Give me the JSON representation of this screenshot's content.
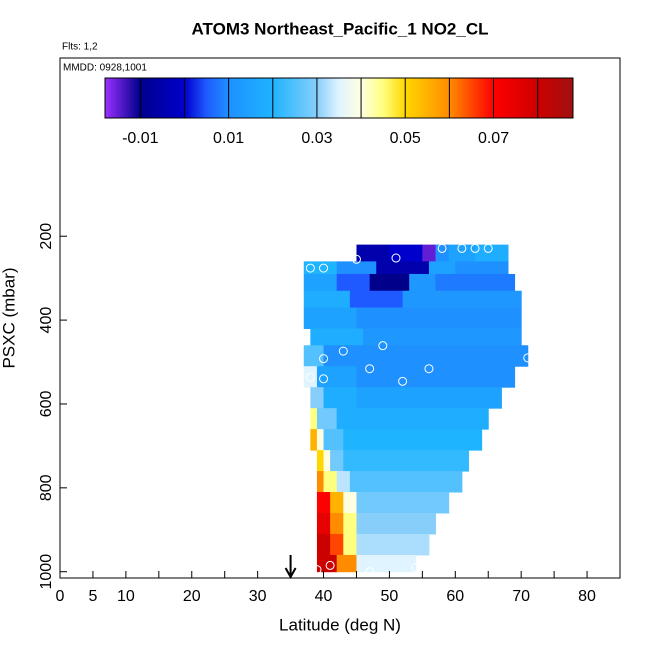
{
  "chart_data": {
    "type": "curtain",
    "title": "ATOM3 Northeast_Pacific_1 NO2_CL",
    "flights_note": "Flts: 1,2",
    "dates_note": "MMDD: 0928,1001",
    "xlabel": "Latitude (deg N)",
    "ylabel": "PSXC (mbar)",
    "xlim": [
      0,
      85
    ],
    "ylim": [
      1015,
      -225
    ],
    "xticks": [
      0,
      5,
      10,
      20,
      30,
      40,
      50,
      60,
      70,
      80
    ],
    "xminor": [
      15,
      25,
      35,
      45,
      55,
      65,
      75,
      85
    ],
    "yticks": [
      200,
      400,
      600,
      800,
      1000
    ],
    "colorbar_range": [
      -0.018,
      0.088
    ],
    "colorbar_ticks": [
      -0.01,
      0.01,
      0.03,
      0.05,
      0.07
    ],
    "colorbar_breaks": [
      -0.01,
      0,
      0.01,
      0.02,
      0.03,
      0.04,
      0.05,
      0.06,
      0.07,
      0.08
    ],
    "colorscale": [
      [
        -0.018,
        "#9b30ff"
      ],
      [
        -0.01,
        "#00008b"
      ],
      [
        0.0,
        "#0000cd"
      ],
      [
        0.005,
        "#1e5aff"
      ],
      [
        0.01,
        "#1e90ff"
      ],
      [
        0.02,
        "#1eb4ff"
      ],
      [
        0.03,
        "#87cefa"
      ],
      [
        0.035,
        "#e0f4ff"
      ],
      [
        0.04,
        "#ffffe0"
      ],
      [
        0.045,
        "#ffff80"
      ],
      [
        0.05,
        "#ffd700"
      ],
      [
        0.06,
        "#ff8c00"
      ],
      [
        0.07,
        "#ff0000"
      ],
      [
        0.08,
        "#cd0000"
      ],
      [
        0.088,
        "#a01010"
      ]
    ],
    "cells": [
      {
        "p": [
          220,
          260
        ],
        "edges": [
          45,
          50,
          55,
          57,
          59,
          63,
          68
        ],
        "values": [
          -0.005,
          0.0,
          -0.015,
          0.01,
          0.015,
          0.018
        ]
      },
      {
        "p": [
          260,
          290
        ],
        "edges": [
          37,
          42,
          48,
          56,
          60,
          68
        ],
        "values": [
          0.02,
          0.01,
          -0.005,
          0.015,
          0.01
        ]
      },
      {
        "p": [
          290,
          330
        ],
        "edges": [
          37,
          42,
          47,
          53,
          57,
          69
        ],
        "values": [
          0.015,
          0.005,
          -0.01,
          0.012,
          0.008
        ]
      },
      {
        "p": [
          330,
          370
        ],
        "edges": [
          37,
          44,
          52,
          70
        ],
        "values": [
          0.018,
          0.005,
          0.012
        ]
      },
      {
        "p": [
          370,
          420
        ],
        "edges": [
          37,
          45,
          70
        ],
        "values": [
          0.015,
          0.01
        ]
      },
      {
        "p": [
          420,
          460
        ],
        "edges": [
          38,
          46,
          70
        ],
        "values": [
          0.018,
          0.012
        ]
      },
      {
        "p": [
          460,
          510
        ],
        "edges": [
          37,
          40,
          71
        ],
        "values": [
          0.025,
          0.01
        ]
      },
      {
        "p": [
          510,
          560
        ],
        "edges": [
          37,
          39,
          45,
          69
        ],
        "values": [
          0.035,
          0.015,
          0.01
        ]
      },
      {
        "p": [
          560,
          610
        ],
        "edges": [
          38,
          40,
          45,
          67
        ],
        "values": [
          0.03,
          0.018,
          0.015
        ]
      },
      {
        "p": [
          610,
          660
        ],
        "edges": [
          38,
          39,
          42,
          65
        ],
        "values": [
          0.045,
          0.028,
          0.018
        ]
      },
      {
        "p": [
          660,
          710
        ],
        "edges": [
          38,
          39,
          40,
          43,
          64
        ],
        "values": [
          0.055,
          0.04,
          0.025,
          0.02
        ]
      },
      {
        "p": [
          710,
          760
        ],
        "edges": [
          39,
          40,
          41,
          43,
          62
        ],
        "values": [
          0.05,
          0.04,
          0.028,
          0.022
        ]
      },
      {
        "p": [
          760,
          810
        ],
        "edges": [
          39,
          40,
          42,
          44,
          61
        ],
        "values": [
          0.06,
          0.045,
          0.033,
          0.025
        ]
      },
      {
        "p": [
          810,
          860
        ],
        "edges": [
          39,
          41,
          43,
          45,
          59
        ],
        "values": [
          0.07,
          0.055,
          0.04,
          0.028
        ]
      },
      {
        "p": [
          860,
          910
        ],
        "edges": [
          39,
          41,
          43,
          45,
          57
        ],
        "values": [
          0.075,
          0.06,
          0.045,
          0.03
        ]
      },
      {
        "p": [
          910,
          960
        ],
        "edges": [
          39,
          41,
          43,
          45,
          56
        ],
        "values": [
          0.08,
          0.065,
          0.045,
          0.032
        ]
      },
      {
        "p": [
          960,
          1000
        ],
        "edges": [
          39,
          42,
          45,
          54
        ],
        "values": [
          0.08,
          0.06,
          0.035
        ]
      }
    ],
    "points": {
      "lat": [
        45,
        51,
        58,
        61,
        63,
        65,
        69,
        36,
        38,
        40,
        43,
        49,
        40,
        38,
        40,
        47,
        52,
        56,
        71,
        39,
        41,
        47,
        54
      ],
      "p": [
        255,
        252,
        229,
        229,
        229,
        229,
        229,
        292,
        276,
        276,
        474,
        461,
        492,
        536,
        540,
        516,
        546,
        516,
        490,
        995,
        985,
        1000,
        990
      ]
    },
    "arrow_lat": 35
  }
}
